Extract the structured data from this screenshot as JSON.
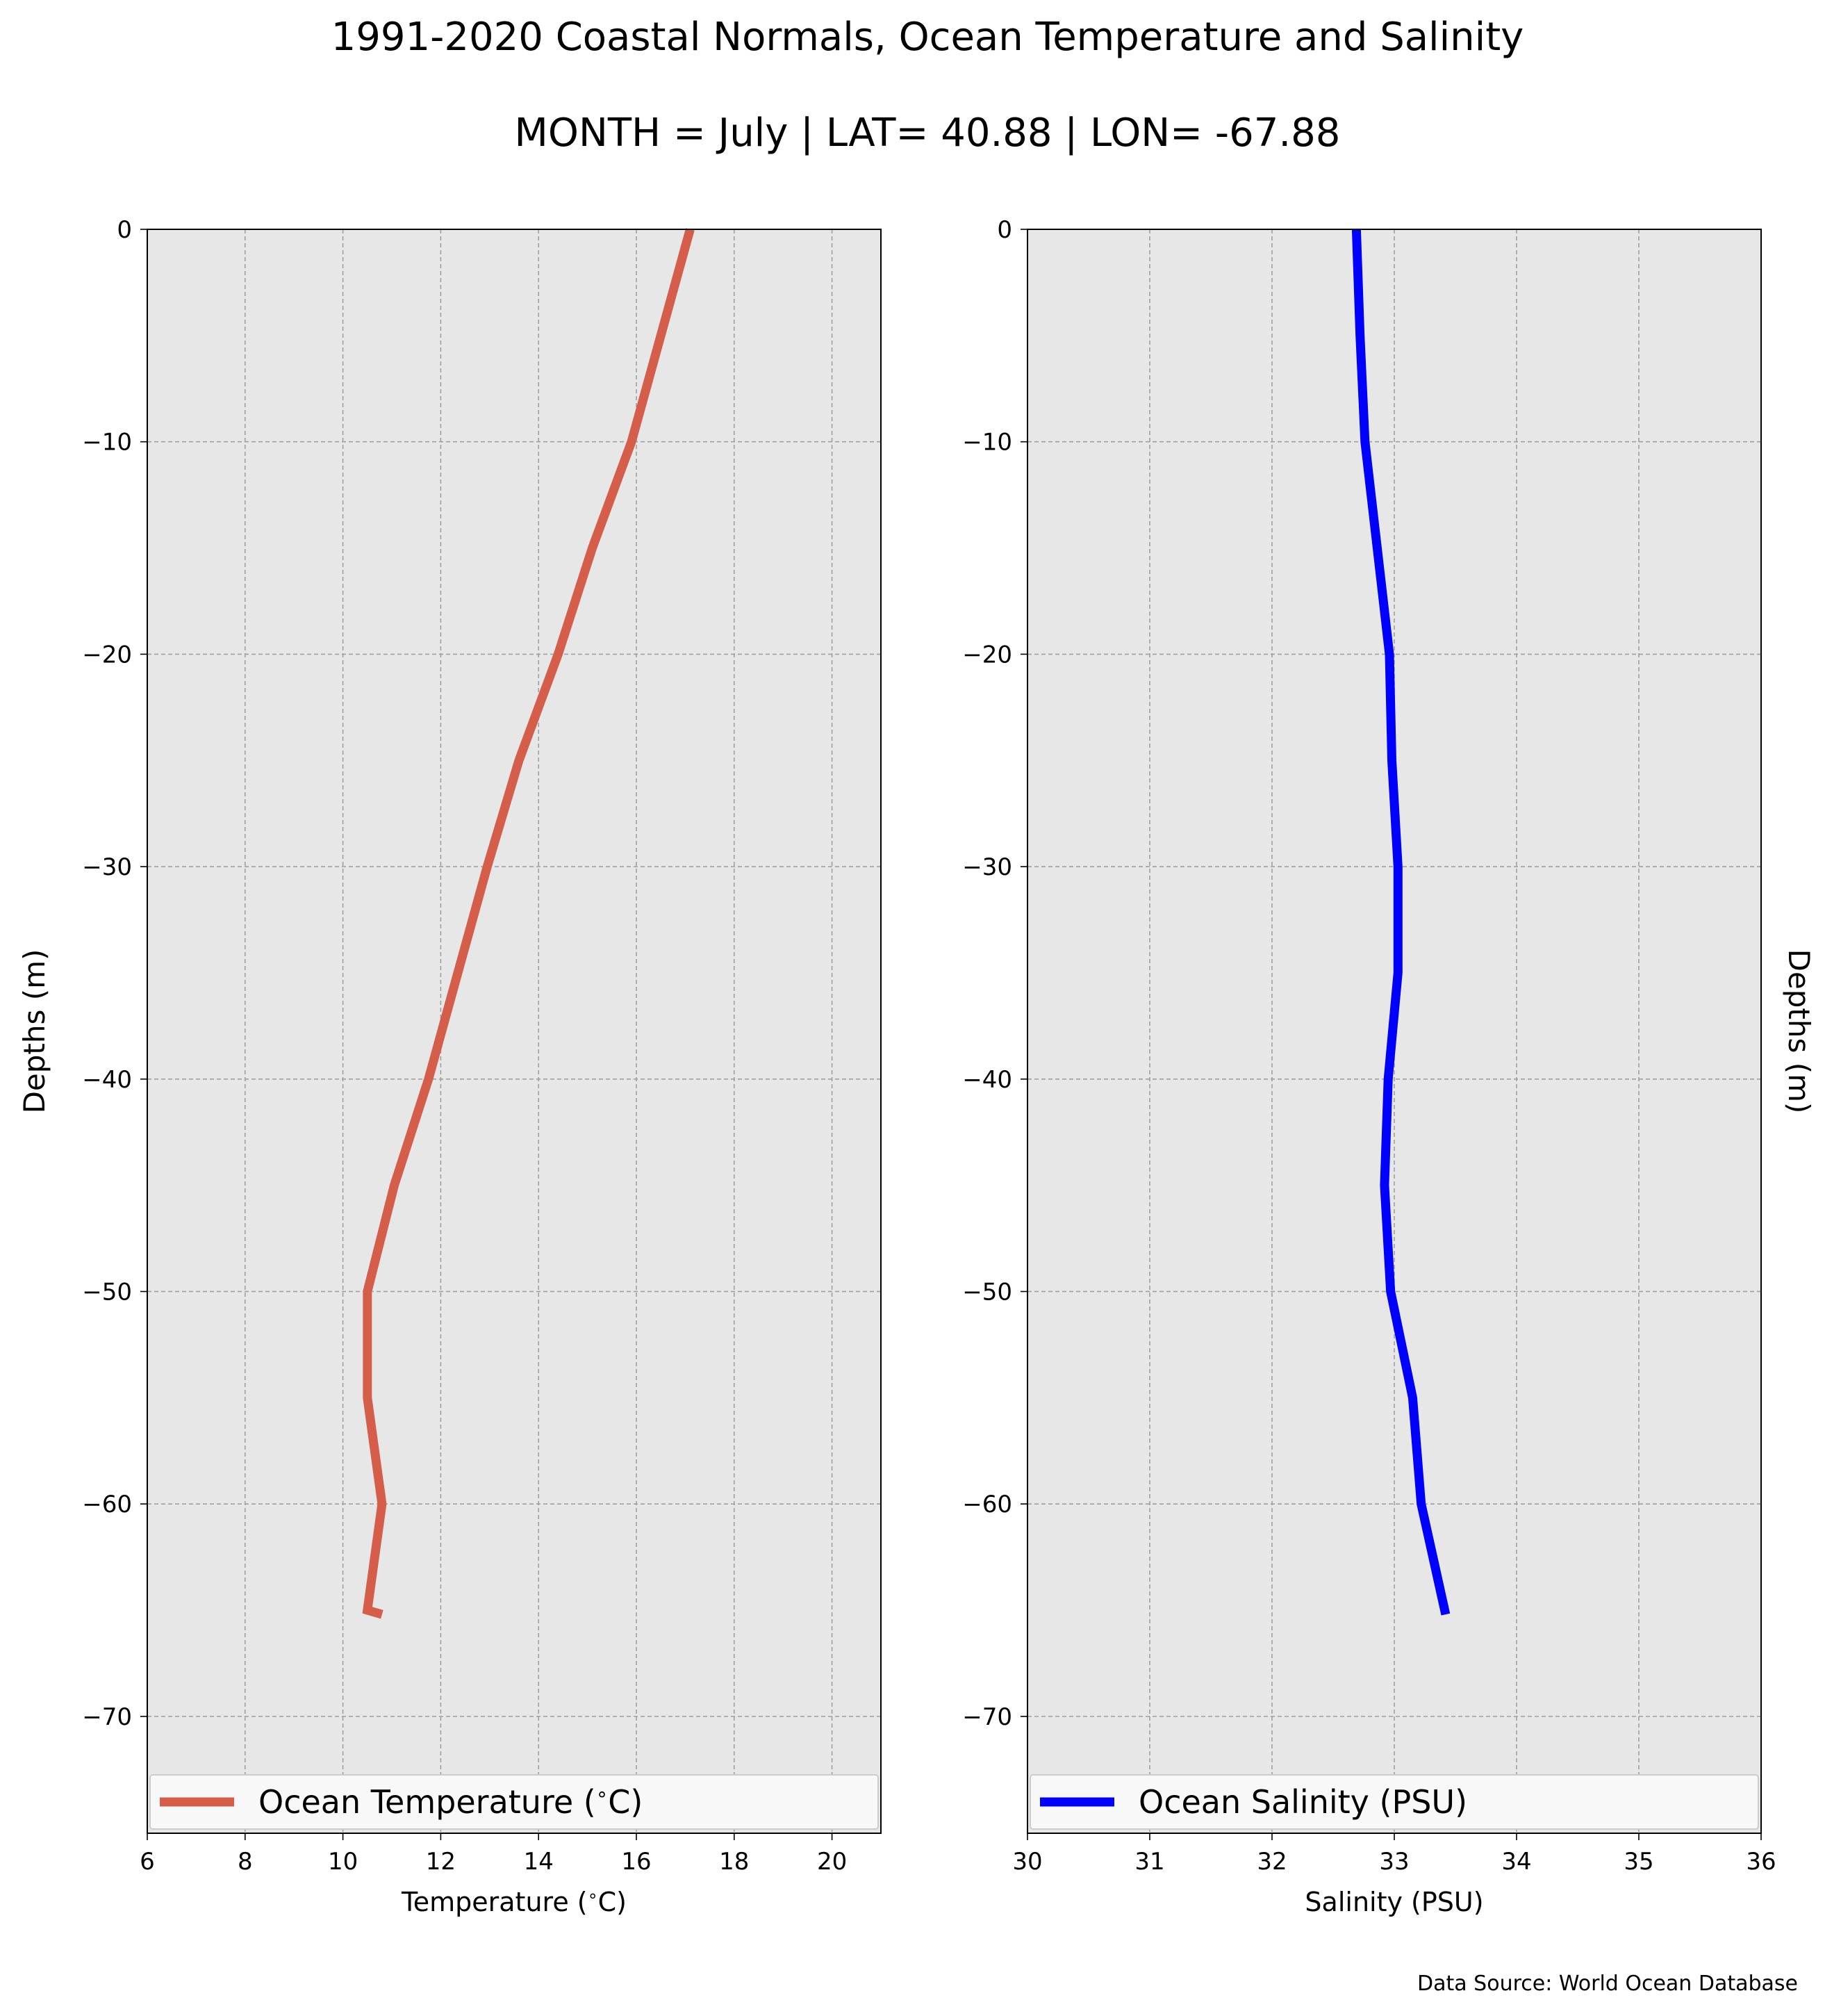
{
  "figure": {
    "title": "1991-2020 Coastal Normals, Ocean Temperature and Salinity",
    "subtitle": "MONTH = July | LAT= 40.88 | LON= -67.88",
    "source_note": "Data Source: World Ocean Database",
    "plot_background": "#e7e7e7",
    "grid_color": "#a0a0a0"
  },
  "chart_data": [
    {
      "type": "line",
      "title": "",
      "xlabel": "Temperature ($^\\circ$C)",
      "xlabel_text": "Temperature (",
      "xlabel_unit": "C)",
      "ylabel": "Depths (m)",
      "xlim": [
        6,
        21
      ],
      "ylim": [
        -75.5,
        0
      ],
      "xticks": [
        6,
        8,
        10,
        12,
        14,
        16,
        18,
        20
      ],
      "yticks": [
        0,
        -10,
        -20,
        -30,
        -40,
        -50,
        -60,
        -70
      ],
      "grid": true,
      "legend_position": "bottom",
      "series": [
        {
          "name": "Ocean Temperature (°C)",
          "legend_text": "Ocean Temperature (",
          "legend_unit": "C)",
          "color": "#d45e4a",
          "x": [
            17.1,
            16.5,
            15.9,
            15.1,
            14.4,
            13.6,
            12.95,
            12.35,
            11.75,
            11.05,
            10.5,
            10.5,
            10.8,
            10.5,
            10.8
          ],
          "y": [
            0,
            -5,
            -10,
            -15,
            -20,
            -25,
            -30,
            -35,
            -40,
            -45,
            -50,
            -55,
            -60,
            -65,
            -65.2
          ]
        }
      ]
    },
    {
      "type": "line",
      "title": "",
      "xlabel": "Salinity (PSU)",
      "ylabel": "Depths (m)",
      "xlim": [
        30,
        36
      ],
      "ylim": [
        -75.5,
        0
      ],
      "xticks": [
        30,
        31,
        32,
        33,
        34,
        35,
        36
      ],
      "yticks": [
        0,
        -10,
        -20,
        -30,
        -40,
        -50,
        -60,
        -70
      ],
      "grid": true,
      "legend_position": "bottom",
      "series": [
        {
          "name": "Ocean Salinity (PSU)",
          "color": "#0000ff",
          "x": [
            32.69,
            32.72,
            32.76,
            32.86,
            32.96,
            32.98,
            33.03,
            33.03,
            32.95,
            32.92,
            32.97,
            33.15,
            33.22,
            33.42
          ],
          "y": [
            0,
            -5,
            -10,
            -15,
            -20,
            -25,
            -30,
            -35,
            -40,
            -45,
            -50,
            -55,
            -60,
            -65.2
          ]
        }
      ]
    }
  ]
}
